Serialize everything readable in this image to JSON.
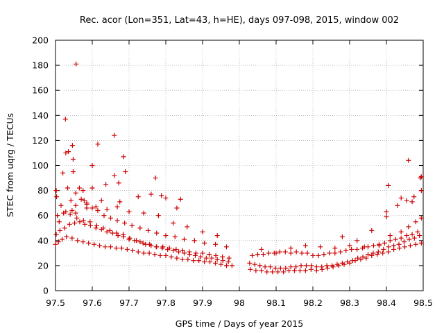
{
  "chart_data": {
    "type": "scatter",
    "title": "Rec. acor (Lon=351, Lat=43, h=HE), days 097-098, 2015, window 002",
    "xlabel": "GPS time / Days of year 2015",
    "ylabel": "STEC from uqrg / TECUs",
    "xlim": [
      97.5,
      98.5
    ],
    "ylim": [
      0,
      200
    ],
    "xticks": [
      "97.5",
      "97.6",
      "97.7",
      "97.8",
      "97.9",
      "98",
      "98.1",
      "98.2",
      "98.3",
      "98.4",
      "98.5"
    ],
    "yticks": [
      "0",
      "20",
      "40",
      "60",
      "80",
      "100",
      "120",
      "140",
      "160",
      "180",
      "200"
    ],
    "grid": true,
    "legend": "none",
    "marker": "+",
    "color": "#cc0000",
    "series": [
      {
        "name": "STEC",
        "x": [
          97.5,
          97.508,
          97.518,
          97.53,
          97.545,
          97.56,
          97.575,
          97.59,
          97.605,
          97.62,
          97.635,
          97.65,
          97.665,
          97.68,
          97.695,
          97.71,
          97.725,
          97.74,
          97.755,
          97.77,
          97.785,
          97.8,
          97.815,
          97.83,
          97.845,
          97.86,
          97.875,
          97.89,
          97.905,
          97.92,
          97.935,
          97.95,
          97.965,
          97.98,
          98.03,
          98.045,
          98.06,
          98.075,
          98.09,
          98.105,
          98.12,
          98.135,
          98.15,
          98.165,
          98.18,
          98.195,
          98.21,
          98.225,
          98.24,
          98.255,
          98.27,
          98.285,
          98.3,
          98.315,
          98.33,
          98.345,
          98.36,
          98.375,
          98.39,
          98.405,
          98.42,
          98.435,
          98.45,
          98.465,
          98.48,
          98.495,
          97.502,
          97.512,
          97.525,
          97.538,
          97.552,
          97.566,
          97.58,
          97.595,
          97.61,
          97.625,
          97.64,
          97.655,
          97.67,
          97.685,
          97.7,
          97.715,
          97.73,
          97.745,
          97.76,
          97.775,
          97.79,
          97.805,
          97.82,
          97.835,
          97.85,
          97.865,
          97.88,
          97.895,
          97.91,
          97.925,
          97.94,
          97.955,
          97.97,
          98.028,
          98.042,
          98.056,
          98.07,
          98.084,
          98.098,
          98.112,
          98.126,
          98.14,
          98.154,
          98.168,
          98.182,
          98.196,
          98.21,
          98.224,
          98.238,
          98.252,
          98.266,
          98.28,
          98.294,
          98.308,
          98.322,
          98.336,
          98.35,
          98.364,
          98.378,
          98.392,
          98.406,
          98.42,
          98.434,
          98.448,
          98.462,
          98.476,
          98.49,
          97.505,
          97.522,
          97.54,
          97.558,
          97.576,
          97.594,
          97.612,
          97.63,
          97.648,
          97.666,
          97.684,
          97.702,
          97.72,
          97.738,
          97.756,
          97.774,
          97.792,
          97.81,
          97.828,
          97.846,
          97.864,
          97.882,
          97.9,
          97.918,
          97.936,
          97.954,
          97.972,
          98.035,
          98.05,
          98.065,
          98.08,
          98.095,
          98.11,
          98.125,
          98.14,
          98.155,
          98.17,
          98.185,
          98.2,
          98.215,
          98.23,
          98.245,
          98.26,
          98.275,
          98.29,
          98.305,
          98.32,
          98.335,
          98.35,
          98.365,
          98.38,
          98.395,
          98.41,
          98.425,
          98.44,
          98.455,
          98.47,
          98.485,
          97.503,
          97.515,
          97.528,
          97.542,
          97.555,
          97.57,
          97.585,
          97.6,
          97.615,
          97.632,
          97.65,
          97.668,
          97.688,
          97.708,
          97.73,
          97.752,
          97.775,
          97.8,
          97.825,
          97.85,
          97.878,
          97.905,
          97.935,
          97.965,
          98.06,
          98.1,
          98.14,
          98.18,
          98.22,
          98.26,
          98.3,
          98.34,
          98.38,
          98.41,
          98.44,
          98.46,
          98.48,
          98.495,
          97.502,
          97.52,
          97.533,
          97.548,
          97.565,
          97.585,
          97.61,
          97.64,
          97.668,
          97.7,
          97.74,
          97.78,
          97.82,
          97.858,
          97.9,
          97.94,
          98.28,
          98.32,
          98.36,
          98.4,
          98.43,
          98.455,
          98.475,
          98.495,
          97.51,
          97.528,
          97.555,
          97.575,
          97.6,
          97.625,
          97.66,
          97.69,
          97.725,
          97.76,
          97.8,
          97.83,
          98.4,
          98.44,
          98.47,
          98.492,
          97.556,
          97.527,
          97.546,
          97.535,
          97.548,
          97.6,
          97.615,
          97.66,
          97.672,
          97.545,
          97.555,
          97.675,
          98.46,
          98.495,
          98.405,
          97.578,
          97.637,
          97.585,
          97.685,
          97.772,
          97.788,
          97.84
        ],
        "y": [
          37,
          39,
          41,
          43,
          42,
          40,
          39,
          38,
          37,
          36,
          35,
          35,
          34,
          34,
          33,
          32,
          31,
          30,
          30,
          29,
          28,
          28,
          27,
          26,
          25,
          25,
          24,
          24,
          23,
          23,
          22,
          21,
          20,
          20,
          17,
          16,
          16,
          15,
          15,
          15,
          15,
          16,
          16,
          16,
          16,
          17,
          16,
          17,
          18,
          19,
          20,
          21,
          22,
          24,
          25,
          26,
          28,
          29,
          30,
          31,
          33,
          34,
          35,
          36,
          37,
          38,
          45,
          48,
          50,
          53,
          54,
          55,
          53,
          52,
          50,
          49,
          47,
          46,
          44,
          43,
          41,
          40,
          39,
          37,
          36,
          35,
          34,
          33,
          32,
          31,
          30,
          29,
          28,
          27,
          26,
          26,
          25,
          24,
          23,
          22,
          21,
          20,
          19,
          19,
          18,
          18,
          18,
          19,
          19,
          20,
          20,
          20,
          19,
          19,
          20,
          20,
          21,
          22,
          23,
          24,
          26,
          27,
          29,
          30,
          31,
          33,
          35,
          36,
          37,
          39,
          41,
          42,
          44,
          60,
          62,
          61,
          58,
          56,
          55,
          52,
          50,
          48,
          46,
          45,
          42,
          40,
          38,
          37,
          35,
          35,
          34,
          33,
          32,
          31,
          30,
          30,
          29,
          28,
          27,
          26,
          28,
          29,
          29,
          30,
          30,
          31,
          31,
          30,
          31,
          30,
          30,
          28,
          28,
          29,
          30,
          30,
          31,
          32,
          33,
          33,
          34,
          35,
          36,
          37,
          38,
          40,
          41,
          42,
          44,
          45,
          47,
          75,
          68,
          63,
          72,
          68,
          73,
          70,
          66,
          64,
          60,
          58,
          56,
          54,
          52,
          50,
          48,
          46,
          44,
          43,
          41,
          40,
          38,
          37,
          35,
          33,
          30,
          34,
          36,
          35,
          34,
          36,
          35,
          36,
          44,
          47,
          51,
          55,
          58,
          80,
          94,
          82,
          95,
          82,
          66,
          67,
          65,
          67,
          63,
          62,
          60,
          54,
          51,
          47,
          44,
          43,
          40,
          48,
          63,
          68,
          72,
          75,
          80,
          55,
          110,
          78,
          80,
          82,
          72,
          92,
          95,
          75,
          77,
          74,
          66,
          59,
          74,
          71,
          90,
          181,
          137,
          116,
          111,
          105,
          100,
          117,
          124,
          86,
          64,
          62,
          71,
          104,
          91,
          84,
          72,
          85,
          69,
          107,
          90,
          76,
          73
        ]
      }
    ]
  }
}
